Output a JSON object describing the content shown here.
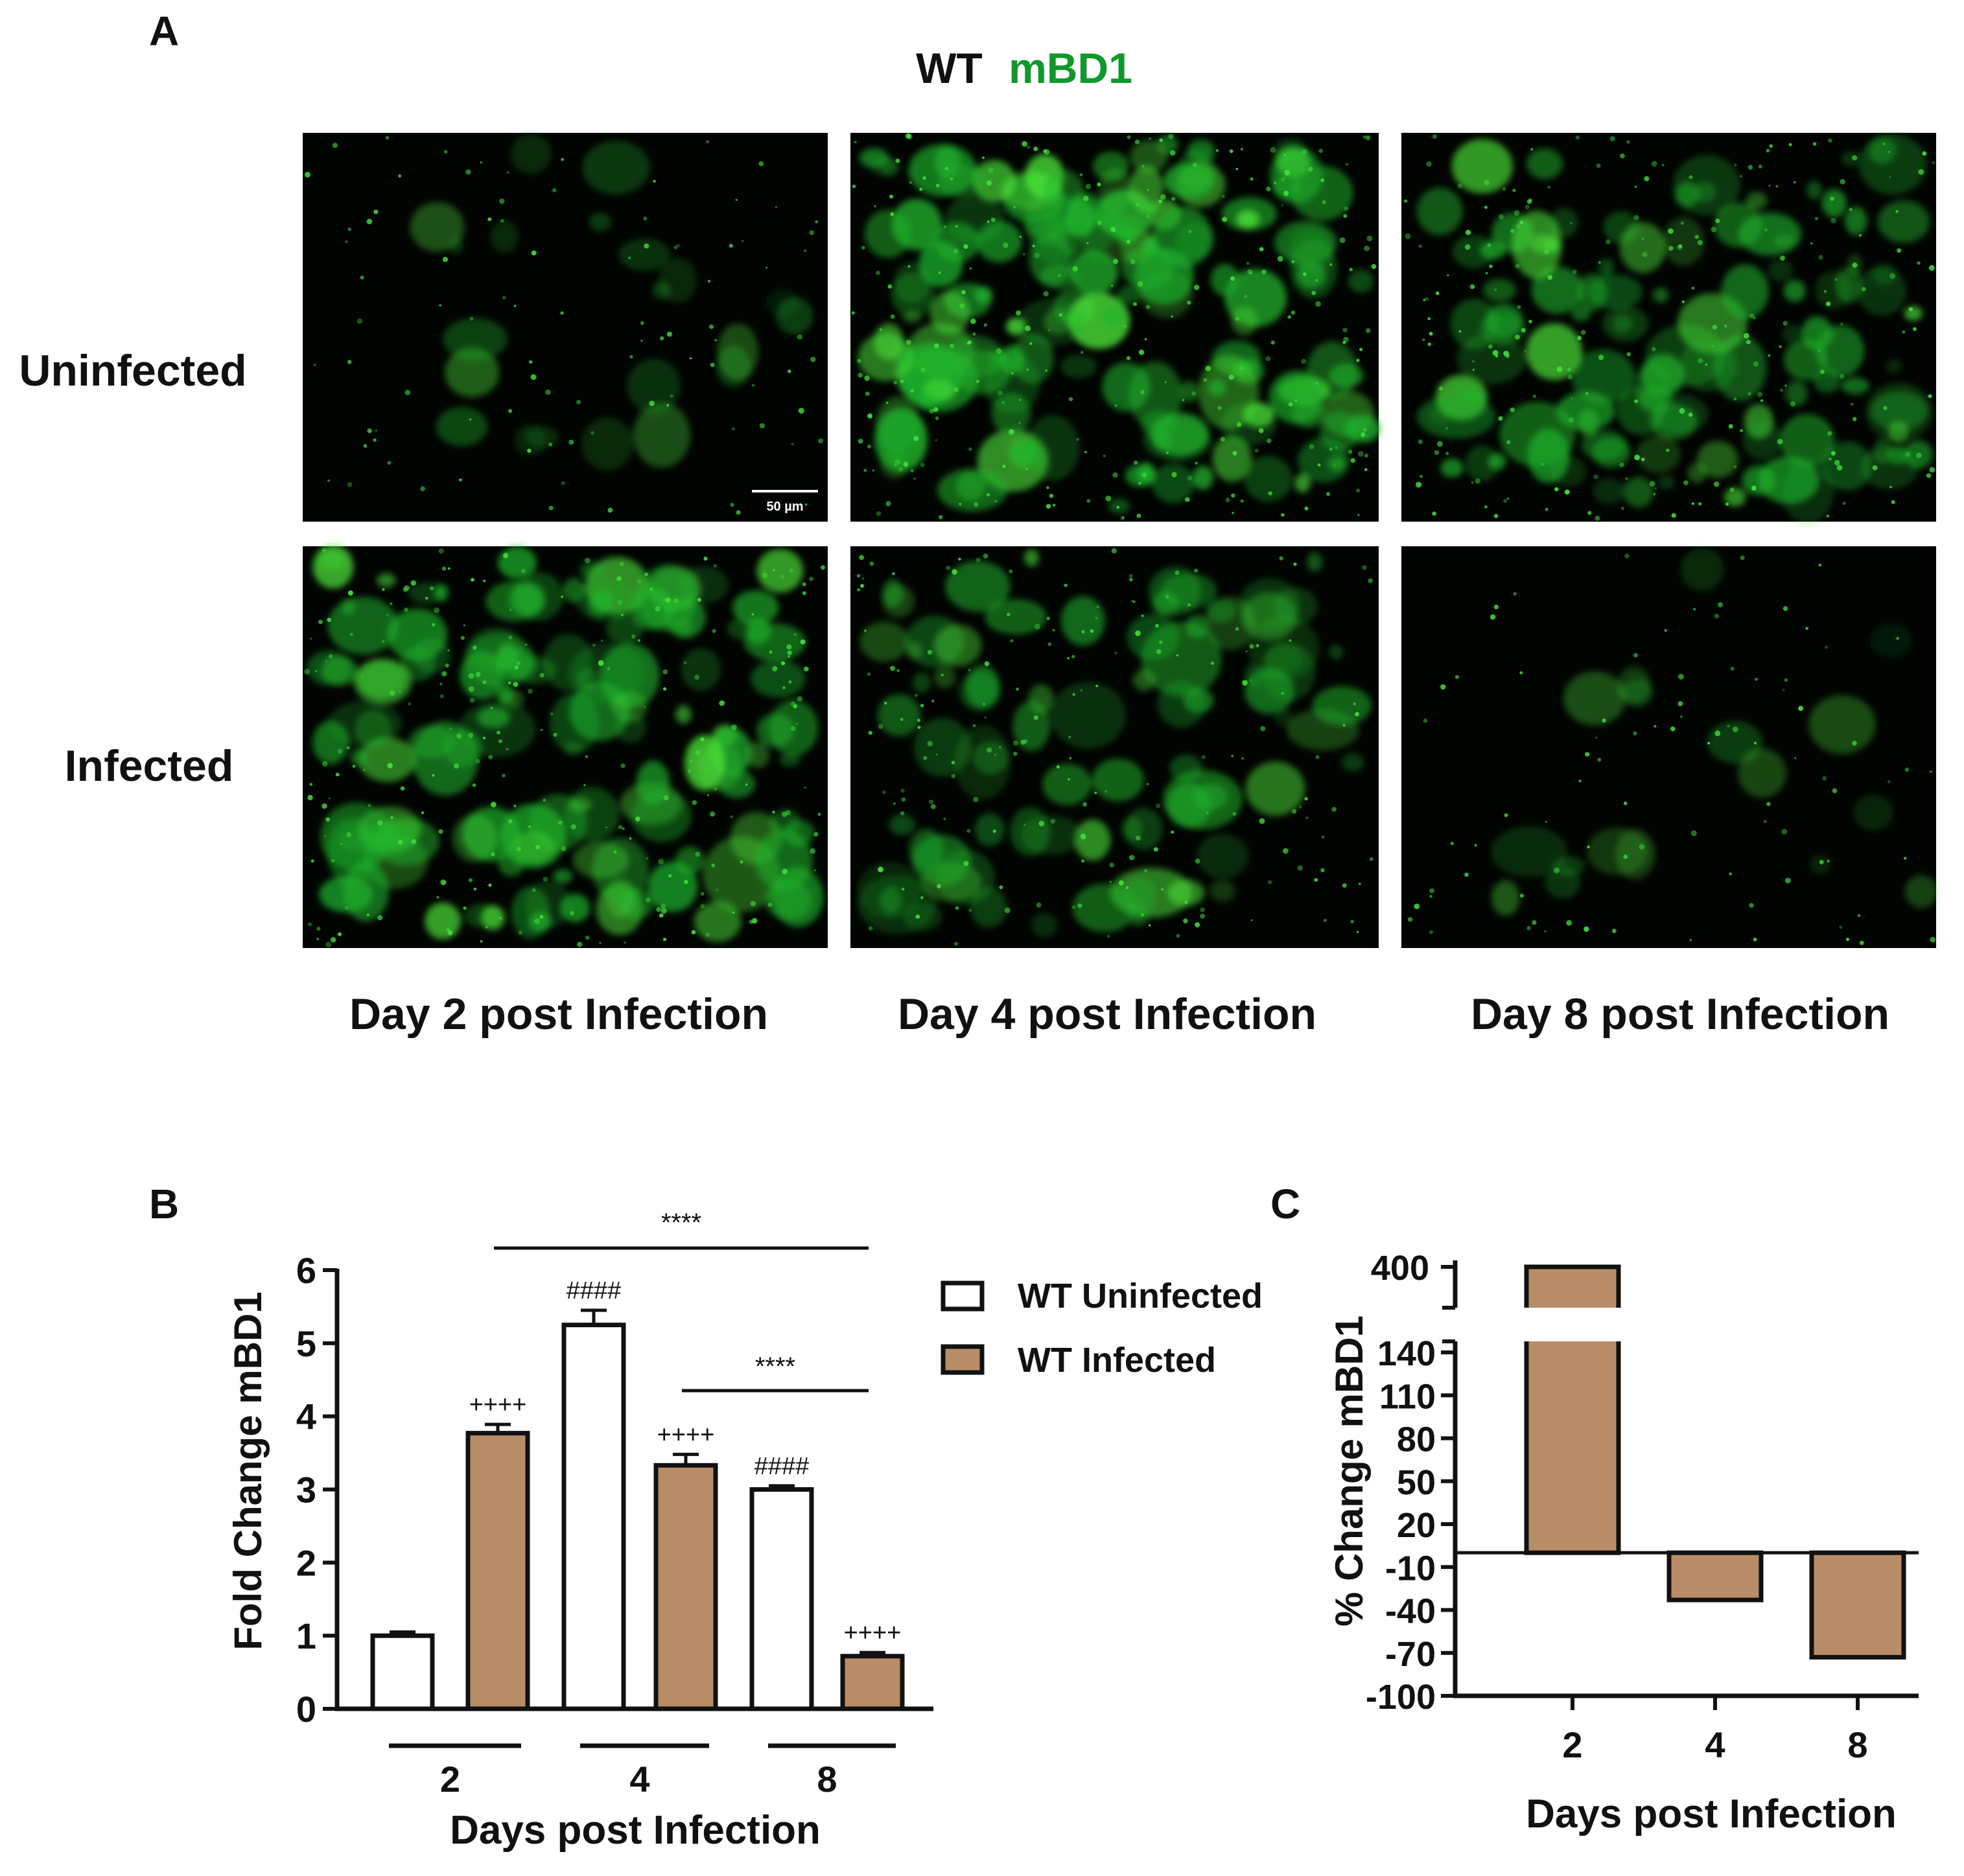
{
  "panelA": {
    "label": "A",
    "title_wt": "WT",
    "title_marker": "mBD1",
    "marker_color": "#0e9a2a",
    "row_labels": [
      "Uninfected",
      "Infected"
    ],
    "col_labels": [
      "Day 2 post Infection",
      "Day 4 post Infection",
      "Day 8 post Infection"
    ],
    "scale_bar": "50 µm",
    "intensity": [
      [
        0.15,
        0.95,
        0.75
      ],
      [
        0.85,
        0.55,
        0.12
      ]
    ]
  },
  "panelB": {
    "label": "B"
  },
  "panelC": {
    "label": "C"
  },
  "chart_data": [
    {
      "type": "bar",
      "panel": "B",
      "ylabel": "Fold Change mBD1",
      "xlabel": "Days post Infection",
      "categories": [
        "2",
        "4",
        "8"
      ],
      "ylim": [
        0,
        6
      ],
      "yticks": [
        "0",
        "1",
        "2",
        "3",
        "4",
        "5",
        "6"
      ],
      "series": [
        {
          "name": "WT Uninfected",
          "color": "#ffffff",
          "values": [
            1.0,
            5.25,
            3.0
          ],
          "errors": [
            0.05,
            0.2,
            0.05
          ]
        },
        {
          "name": "WT Infected",
          "color": "#b78c66",
          "values": [
            3.77,
            3.33,
            0.72
          ],
          "errors": [
            0.12,
            0.15,
            0.05
          ]
        }
      ],
      "bar_annotations": [
        {
          "series": 1,
          "category": 0,
          "text": "++++"
        },
        {
          "series": 0,
          "category": 1,
          "text": "####"
        },
        {
          "series": 1,
          "category": 1,
          "text": "++++"
        },
        {
          "series": 0,
          "category": 2,
          "text": "####"
        },
        {
          "series": 1,
          "category": 2,
          "text": "++++"
        }
      ],
      "brackets": [
        {
          "text": "****",
          "from": "Infected day 2",
          "to": "Infected day 8"
        },
        {
          "text": "****",
          "from": "Infected day 4",
          "to": "Infected day 8"
        }
      ],
      "legend": "right"
    },
    {
      "type": "bar",
      "panel": "C",
      "ylabel": "% Change mBD1",
      "xlabel": "Days post Infection",
      "categories": [
        "2",
        "4",
        "8"
      ],
      "values": [
        400,
        -33,
        -73
      ],
      "color": "#b78c66",
      "yticks_lower": [
        "-100",
        "-70",
        "-40",
        "-10",
        "20",
        "50",
        "80",
        "110",
        "140"
      ],
      "ytick_upper": "400",
      "axis_break": [
        150,
        380
      ],
      "ylim": [
        -100,
        400
      ]
    }
  ]
}
